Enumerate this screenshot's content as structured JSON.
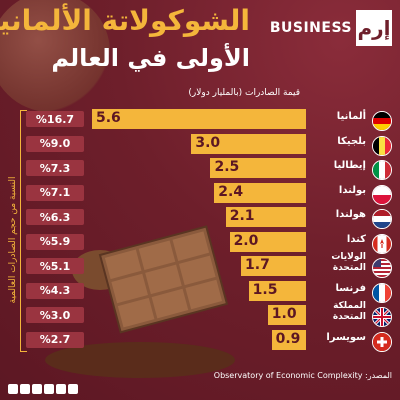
{
  "header": {
    "title_line1": "الشوكولاتة الألمانية",
    "title_line2": "الأولى في العالم",
    "brand_text": "BUSINESS",
    "brand_logo": "إرم",
    "subtitle": "قيمة الصادرات (بالمليار دولار)",
    "side_label": "النسبة من حجم الصادرات العالمية"
  },
  "footer": {
    "source": "المصدر: Observatory of Economic Complexity"
  },
  "chart_data": {
    "type": "bar",
    "orientation": "horizontal",
    "title": "الشوكولاتة الألمانية الأولى في العالم",
    "unit_label": "قيمة الصادرات (بالمليار دولار)",
    "categories": [
      "ألمانيا",
      "بلجيكا",
      "إيطاليا",
      "بولندا",
      "هولندا",
      "كندا",
      "الولايات المتحدة",
      "فرنسا",
      "المملكة المتحدة",
      "سويسرا"
    ],
    "values": [
      5.6,
      3.0,
      2.5,
      2.4,
      2.1,
      2.0,
      1.7,
      1.5,
      1.0,
      0.9
    ],
    "value_labels": [
      "5.6",
      "3.0",
      "2.5",
      "2.4",
      "2.1",
      "2.0",
      "1.7",
      "1.5",
      "1.0",
      "0.9"
    ],
    "share_labels": [
      "%16.7",
      "%9.0",
      "%7.3",
      "%7.1",
      "%6.3",
      "%5.9",
      "%5.1",
      "%4.3",
      "%3.0",
      "%2.7"
    ],
    "share_values": [
      16.7,
      9.0,
      7.3,
      7.1,
      6.3,
      5.9,
      5.1,
      4.3,
      3.0,
      2.7
    ],
    "country_lines": [
      [
        "ألمانيا"
      ],
      [
        "بلجيكا"
      ],
      [
        "إيطاليا"
      ],
      [
        "بولندا"
      ],
      [
        "هولندا"
      ],
      [
        "كندا"
      ],
      [
        "الولايات",
        "المتحدة"
      ],
      [
        "فرنسا"
      ],
      [
        "المملكة",
        "المتحدة"
      ],
      [
        "سويسرا"
      ]
    ],
    "flags": [
      "germany-flag",
      "belgium-flag",
      "italy-flag",
      "poland-flag",
      "netherlands-flag",
      "canada-flag",
      "usa-flag",
      "france-flag",
      "uk-flag",
      "switzerland-flag"
    ],
    "xlim": [
      0,
      5.6
    ],
    "bar_color": "#f4b63b",
    "share_color": "#9a3440"
  }
}
